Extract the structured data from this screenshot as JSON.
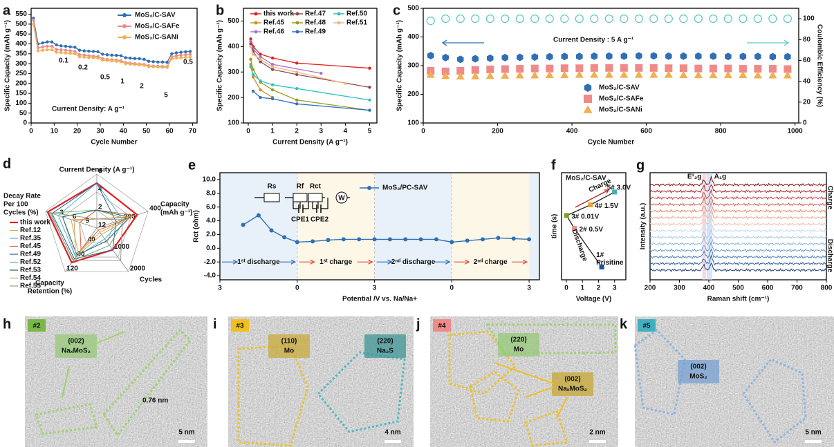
{
  "chart_data": [
    {
      "panel": "a",
      "type": "line",
      "xlabel": "Cycle Number",
      "ylabel": "Specific Capacity (mAh g⁻¹)",
      "xlim": [
        0,
        72
      ],
      "xticks": [
        0,
        10,
        20,
        30,
        40,
        50,
        60,
        70
      ],
      "ylim": [
        0,
        580
      ],
      "yticks": [
        0,
        50,
        100,
        150,
        200,
        250,
        300,
        350,
        400,
        450,
        500,
        550
      ],
      "x": [
        1,
        3,
        5,
        7,
        9,
        11,
        13,
        15,
        17,
        19,
        21,
        23,
        25,
        27,
        29,
        31,
        33,
        35,
        37,
        39,
        41,
        43,
        45,
        47,
        49,
        51,
        53,
        55,
        57,
        59,
        61,
        63,
        65,
        67,
        69
      ],
      "series": [
        {
          "name": "MoS₂/C-SAV",
          "color": "#2e6fb5",
          "values": [
            530,
            400,
            405,
            410,
            410,
            395,
            390,
            388,
            385,
            383,
            368,
            365,
            363,
            362,
            360,
            348,
            345,
            343,
            342,
            340,
            330,
            328,
            326,
            325,
            322,
            312,
            310,
            308,
            308,
            307,
            350,
            355,
            358,
            360,
            362
          ]
        },
        {
          "name": "MoS₂/C-SAFe",
          "color": "#f08a8a",
          "values": [
            520,
            380,
            385,
            388,
            388,
            372,
            370,
            368,
            365,
            362,
            345,
            343,
            340,
            338,
            336,
            325,
            322,
            320,
            318,
            316,
            305,
            303,
            300,
            298,
            296,
            290,
            288,
            287,
            286,
            285,
            335,
            340,
            343,
            345,
            347
          ]
        },
        {
          "name": "MoS₂/C-SANi",
          "color": "#f0b050",
          "values": [
            500,
            365,
            368,
            370,
            370,
            358,
            356,
            354,
            352,
            350,
            335,
            333,
            331,
            330,
            328,
            318,
            316,
            314,
            312,
            310,
            300,
            298,
            296,
            294,
            292,
            285,
            284,
            283,
            282,
            281,
            325,
            328,
            330,
            332,
            333
          ]
        }
      ],
      "annotations": [
        "0.1",
        "0.2",
        "0.5",
        "1",
        "2",
        "5",
        "0.5",
        "Current Density: A g⁻¹"
      ]
    },
    {
      "panel": "b",
      "type": "line",
      "xlabel": "Current Density (A g⁻¹)",
      "ylabel": "Specific Capacity (mAh g⁻¹)",
      "xlim": [
        -0.2,
        5.3
      ],
      "xticks": [
        0,
        1,
        2,
        3,
        4,
        5
      ],
      "ylim": [
        100,
        550
      ],
      "yticks": [
        100,
        200,
        300,
        400,
        500
      ],
      "series": [
        {
          "name": "this work",
          "color": "#e02020",
          "x": [
            0.1,
            0.2,
            0.5,
            1,
            2,
            5
          ],
          "values": [
            430,
            400,
            370,
            355,
            335,
            315
          ]
        },
        {
          "name": "Ref.45",
          "color": "#d09020",
          "x": [
            0.1,
            0.2,
            0.5,
            1
          ],
          "values": [
            330,
            280,
            230,
            200
          ]
        },
        {
          "name": "Ref.46",
          "color": "#b070d0",
          "x": [
            0.1,
            0.2,
            0.5,
            1,
            3
          ],
          "values": [
            420,
            390,
            360,
            330,
            295
          ]
        },
        {
          "name": "Ref.47",
          "color": "#8b4a4a",
          "x": [
            0.1,
            0.2,
            0.5,
            1,
            2,
            5
          ],
          "values": [
            410,
            380,
            340,
            310,
            290,
            240
          ]
        },
        {
          "name": "Ref.48",
          "color": "#9a9a20",
          "x": [
            0.1,
            0.2,
            0.5,
            1,
            2,
            5
          ],
          "values": [
            350,
            310,
            260,
            230,
            190,
            150
          ]
        },
        {
          "name": "Ref.49",
          "color": "#3070c0",
          "x": [
            0.2,
            0.5,
            1,
            2,
            5
          ],
          "values": [
            225,
            200,
            195,
            175,
            150
          ]
        },
        {
          "name": "Ref.50",
          "color": "#30c0c0",
          "x": [
            0.1,
            0.2,
            0.5,
            1,
            2,
            5
          ],
          "values": [
            320,
            290,
            265,
            250,
            235,
            190
          ]
        },
        {
          "name": "Ref.51",
          "color": "#f0b880",
          "x": [
            0.1,
            0.2,
            0.5,
            1,
            2,
            4
          ],
          "values": [
            400,
            370,
            350,
            320,
            300,
            255
          ]
        }
      ]
    },
    {
      "panel": "c",
      "type": "scatter",
      "xlabel": "Cycle Number",
      "ylabel": "Specific Capacity (mAh g⁻¹)",
      "y2label": "Coulombic Efficiency (%)",
      "xlim": [
        0,
        1010
      ],
      "xticks": [
        0,
        200,
        400,
        600,
        800,
        1000
      ],
      "ylim": [
        100,
        500
      ],
      "yticks": [
        100,
        200,
        300,
        400,
        500
      ],
      "y2lim": [
        0,
        110
      ],
      "y2ticks": [
        0,
        20,
        40,
        60,
        80,
        100
      ],
      "x": [
        20,
        60,
        100,
        140,
        180,
        220,
        260,
        300,
        340,
        380,
        420,
        460,
        500,
        540,
        580,
        620,
        660,
        700,
        740,
        780,
        820,
        860,
        900,
        940,
        980
      ],
      "series": [
        {
          "name": "MoS₂/C-SAV",
          "color": "#2e6fb5",
          "marker": "hexagon",
          "values": [
            335,
            328,
            322,
            324,
            326,
            328,
            329,
            330,
            331,
            332,
            332,
            333,
            333,
            333,
            334,
            334,
            333,
            333,
            333,
            333,
            332,
            332,
            332,
            331,
            331
          ]
        },
        {
          "name": "MoS₂/C-SAFe",
          "color": "#f08a8a",
          "marker": "square",
          "values": [
            282,
            280,
            282,
            285,
            287,
            288,
            289,
            290,
            290,
            291,
            291,
            292,
            292,
            292,
            292,
            292,
            291,
            291,
            290,
            290,
            290,
            289,
            289,
            289,
            288
          ]
        },
        {
          "name": "MoS₂/C-SANi",
          "color": "#f0b050",
          "marker": "triangle",
          "values": [
            268,
            264,
            262,
            263,
            264,
            265,
            266,
            266,
            267,
            267,
            268,
            268,
            268,
            268,
            268,
            268,
            268,
            267,
            267,
            267,
            267,
            267,
            266,
            266,
            266
          ]
        },
        {
          "color": "#5ec8c8",
          "marker": "circle",
          "axis": "y2",
          "values": [
            98,
            100,
            100,
            100,
            100,
            100,
            100,
            100,
            100,
            100,
            100,
            100,
            100,
            100,
            100,
            100,
            100,
            100,
            100,
            100,
            100,
            100,
            100,
            100,
            100
          ]
        }
      ],
      "annotations": [
        "Current Density : 5 A g⁻¹"
      ]
    },
    {
      "panel": "d",
      "type": "radar",
      "axes": [
        {
          "label": [
            "Current Density (A g⁻¹)"
          ],
          "lim": [
            0,
            6
          ],
          "ticks": [
            2,
            4,
            6
          ]
        },
        {
          "label": [
            "Capacity",
            "(mAh g⁻¹)"
          ],
          "lim": [
            0,
            400
          ],
          "ticks": [
            200,
            400
          ]
        },
        {
          "label": [
            "Cycles"
          ],
          "lim": [
            0,
            2000
          ],
          "ticks": [
            1000,
            2000
          ]
        },
        {
          "label": [
            "Capacity",
            "Retention (%)"
          ],
          "lim": [
            0,
            120
          ],
          "ticks": [
            40,
            80,
            120
          ]
        },
        {
          "label": [
            "Decay Rate",
            "Per 100",
            "Cycles (%)"
          ],
          "lim": [
            12,
            0
          ],
          "ticks": [
            12,
            9,
            6,
            3
          ]
        }
      ],
      "series": [
        {
          "name": "this work",
          "color": "#e02020",
          "values": [
            5,
            315,
            1000,
            95,
            0.5
          ]
        },
        {
          "name": "Ref.12",
          "color": "#e8a33a",
          "values": [
            1,
            250,
            200,
            70,
            6
          ]
        },
        {
          "name": "Ref.35",
          "color": "#4ab8c8",
          "values": [
            5,
            200,
            500,
            80,
            3
          ]
        },
        {
          "name": "Ref.45",
          "color": "#e06040",
          "values": [
            2,
            300,
            100,
            60,
            8
          ]
        },
        {
          "name": "Ref.49",
          "color": "#2f5fa0",
          "values": [
            5,
            150,
            1000,
            85,
            1.5
          ]
        },
        {
          "name": "Ref.52",
          "color": "#6ab06a",
          "values": [
            2,
            220,
            800,
            90,
            1.2
          ]
        },
        {
          "name": "Ref.53",
          "color": "#1f5f6f",
          "values": [
            2,
            260,
            600,
            75,
            4
          ]
        },
        {
          "name": "Ref.54",
          "color": "#c8a060",
          "values": [
            1,
            280,
            300,
            80,
            6.7
          ]
        },
        {
          "name": "Ref.55",
          "color": "#9a9a9a",
          "values": [
            1,
            200,
            1500,
            88,
            0.8
          ]
        }
      ]
    },
    {
      "panel": "e",
      "type": "line",
      "xlabel": "Potential /V vs. Na/Na+",
      "ylabel": "Rct (ohm)",
      "xlim": [
        0,
        12.4
      ],
      "xticks": [
        {
          "value": 0,
          "label": "3"
        },
        {
          "value": 3,
          "label": "0"
        },
        {
          "value": 6,
          "label": "3"
        },
        {
          "value": 9,
          "label": "0"
        },
        {
          "value": 12,
          "label": "3"
        }
      ],
      "ylim": [
        -4.6,
        11
      ],
      "yticks": [
        {
          "value": -4,
          "label": "-4.0"
        },
        {
          "value": -2,
          "label": "-2.0"
        },
        {
          "value": 0,
          "label": "0.0"
        },
        {
          "value": 2,
          "label": "2.0"
        },
        {
          "value": 4,
          "label": "4.0"
        },
        {
          "value": 6,
          "label": "6.0"
        },
        {
          "value": 8,
          "label": "8.0"
        },
        {
          "value": 10,
          "label": "10.0"
        }
      ],
      "x": [
        0.9,
        1.5,
        2.0,
        2.5,
        3.0,
        3.6,
        4.2,
        4.8,
        5.4,
        6.0,
        6.6,
        7.2,
        7.8,
        8.4,
        9.0,
        9.6,
        10.2,
        10.8,
        11.4,
        12.0
      ],
      "series": [
        {
          "name": "MoS₂/PC-SAV",
          "color": "#2e6fb5",
          "values": [
            3.4,
            4.8,
            2.6,
            1.6,
            0.9,
            1.0,
            1.2,
            1.3,
            1.3,
            1.3,
            1.3,
            1.3,
            1.3,
            1.3,
            0.9,
            1.1,
            1.3,
            1.5,
            1.4,
            1.3
          ]
        }
      ],
      "stages": [
        "1ˢᵗ discharge",
        "1ˢᵗ charge",
        "2ⁿᵈ discharge",
        "2ⁿᵈ charge"
      ],
      "circuit": [
        "Rs",
        "Rf",
        "Rct",
        "W",
        "CPE1",
        "CPE2"
      ]
    },
    {
      "panel": "f",
      "type": "scatter",
      "title": "MoS₂/C-SAV",
      "xlabel": "Voltage (V)",
      "ylabel": "time (s)",
      "xlim": [
        -0.3,
        3.7
      ],
      "xticks": [
        0,
        1,
        2,
        3
      ],
      "points": [
        {
          "label": [
            "1#",
            "Prisitine"
          ],
          "x": 2.2,
          "color": "#1f4e9c"
        },
        {
          "label": [
            "2# 0.5V"
          ],
          "x": 0.5,
          "color": "#f08a8a"
        },
        {
          "label": [
            "3# 0.01V"
          ],
          "x": 0.01,
          "color": "#7aa02a"
        },
        {
          "label": [
            "4# 1.5V"
          ],
          "x": 1.5,
          "color": "#f0a030"
        },
        {
          "label": [
            "5# 3.0V"
          ],
          "x": 3.0,
          "color": "#40b0b0"
        }
      ],
      "annotations": [
        "Charge",
        "Discharge"
      ]
    },
    {
      "panel": "g",
      "type": "line",
      "xlabel": "Raman shift (cm⁻¹)",
      "ylabel": "Intensity (a.u.)",
      "xlim": [
        200,
        800
      ],
      "xticks": [
        200,
        300,
        400,
        500,
        600,
        700,
        800
      ],
      "colors": [
        "#1f3f7a",
        "#2f5f9f",
        "#4f7fbf",
        "#6f9fcf",
        "#8fb7dd",
        "#a9c9e6",
        "#c4dbee",
        "#f4c2b2",
        "#f0a890",
        "#e88870",
        "#d86050",
        "#c84040",
        "#a82828",
        "#7a1010"
      ],
      "annotations": [
        "E¹₂g",
        "A₁g",
        "Charge",
        "Discharge"
      ]
    }
  ],
  "images": [
    {
      "panel": "h",
      "tag": "#2",
      "labels": [
        [
          "(002)",
          "NaₓMoS₂"
        ]
      ],
      "measure": "0.76 nm",
      "scale": "5 nm"
    },
    {
      "panel": "i",
      "tag": "#3",
      "labels": [
        [
          "(110)",
          "Mo"
        ],
        [
          "(220)",
          "Na₂S"
        ]
      ],
      "scale": "4 nm"
    },
    {
      "panel": "j",
      "tag": "#4",
      "labels": [
        [
          "(220)",
          "Mo"
        ],
        [
          "(002)",
          "NaₓMoS₂"
        ]
      ],
      "scale": "2 nm"
    },
    {
      "panel": "k",
      "tag": "#5",
      "labels": [
        [
          "(002)",
          "MoS₂"
        ]
      ],
      "scale": "5 nm"
    }
  ]
}
